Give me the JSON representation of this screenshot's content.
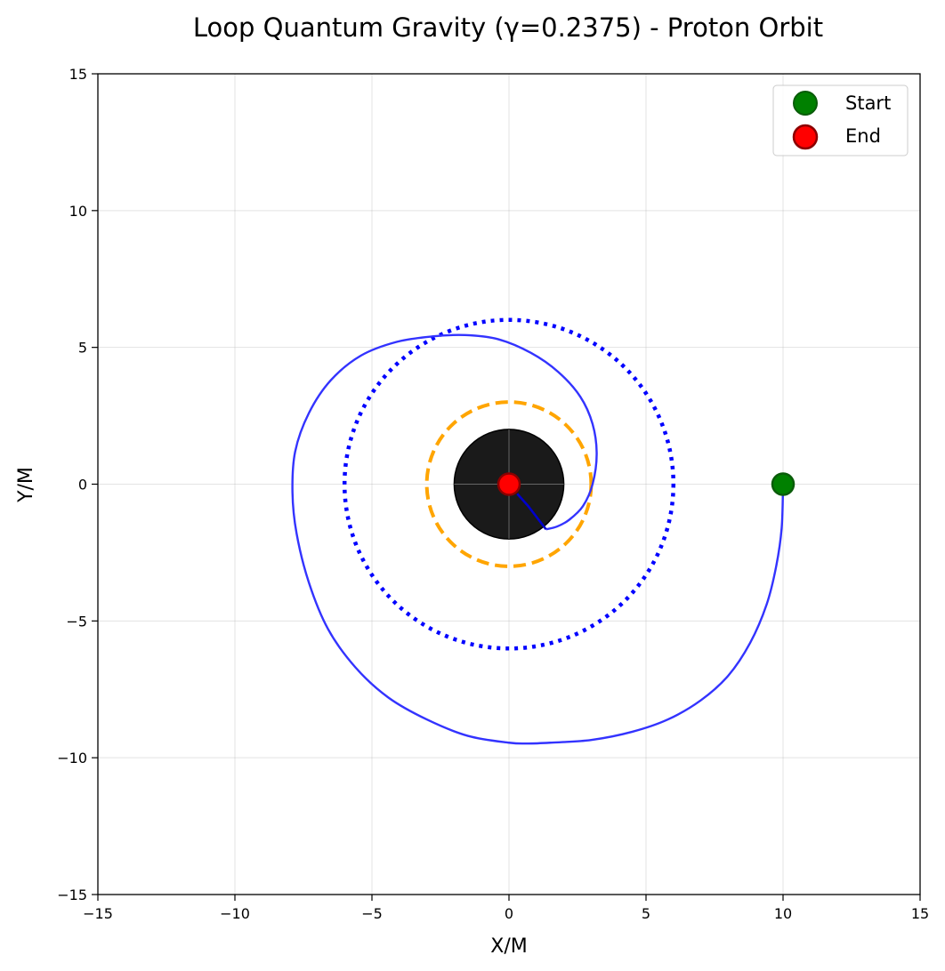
{
  "chart_data": {
    "type": "scatter",
    "title": "Loop Quantum Gravity (γ=0.2375) - Proton Orbit",
    "xlabel": "X/M",
    "ylabel": "Y/M",
    "xlim": [
      -15,
      15
    ],
    "ylim": [
      -15,
      15
    ],
    "xticks": [
      -15,
      -10,
      -5,
      0,
      5,
      10,
      15
    ],
    "yticks": [
      -15,
      -10,
      -5,
      0,
      5,
      10,
      15
    ],
    "xtick_labels": [
      "−15",
      "−10",
      "−5",
      "0",
      "5",
      "10",
      "15"
    ],
    "ytick_labels": [
      "−15",
      "−10",
      "−5",
      "0",
      "5",
      "10",
      "15"
    ],
    "grid": true,
    "legend_position": "top-right",
    "horizon": {
      "center": [
        0,
        0
      ],
      "radius": 2,
      "color": "#1a1a1a"
    },
    "photon_sphere": {
      "center": [
        0,
        0
      ],
      "radius": 3,
      "color": "#ffa500",
      "style": "dashed"
    },
    "isco": {
      "center": [
        0,
        0
      ],
      "radius": 6,
      "color": "#0000ff",
      "style": "dotted"
    },
    "orbit": {
      "color": "#3333ff",
      "points": [
        [
          10.0,
          0.0
        ],
        [
          9.95,
          -1.6
        ],
        [
          9.75,
          -3.0
        ],
        [
          9.4,
          -4.4
        ],
        [
          8.8,
          -5.8
        ],
        [
          8.0,
          -7.0
        ],
        [
          7.0,
          -7.9
        ],
        [
          5.8,
          -8.6
        ],
        [
          4.5,
          -9.05
        ],
        [
          3.0,
          -9.35
        ],
        [
          1.5,
          -9.45
        ],
        [
          0.7,
          -9.48
        ],
        [
          0.0,
          -9.45
        ],
        [
          -1.5,
          -9.2
        ],
        [
          -3.0,
          -8.6
        ],
        [
          -4.4,
          -7.8
        ],
        [
          -5.6,
          -6.7
        ],
        [
          -6.6,
          -5.3
        ],
        [
          -7.3,
          -3.6
        ],
        [
          -7.75,
          -1.8
        ],
        [
          -7.9,
          -0.3
        ],
        [
          -7.8,
          1.2
        ],
        [
          -7.3,
          2.6
        ],
        [
          -6.5,
          3.8
        ],
        [
          -5.4,
          4.7
        ],
        [
          -4.1,
          5.2
        ],
        [
          -2.8,
          5.4
        ],
        [
          -1.6,
          5.45
        ],
        [
          -0.4,
          5.3
        ],
        [
          0.8,
          4.8
        ],
        [
          1.8,
          4.1
        ],
        [
          2.6,
          3.2
        ],
        [
          3.05,
          2.2
        ],
        [
          3.2,
          1.1
        ],
        [
          3.05,
          0.0
        ],
        [
          2.7,
          -0.8
        ],
        [
          2.2,
          -1.3
        ],
        [
          1.75,
          -1.55
        ],
        [
          1.35,
          -1.65
        ]
      ],
      "tail_color": "#0000cc",
      "tail": [
        [
          1.35,
          -1.65
        ],
        [
          0.7,
          -0.8
        ],
        [
          0.3,
          -0.35
        ]
      ]
    },
    "markers": [
      {
        "name": "Start",
        "x": 10,
        "y": 0,
        "color": "#008000",
        "edge": "#0a5c0a"
      },
      {
        "name": "End",
        "x": 0,
        "y": 0,
        "color": "#ff0000",
        "edge": "#8b0000"
      }
    ]
  }
}
